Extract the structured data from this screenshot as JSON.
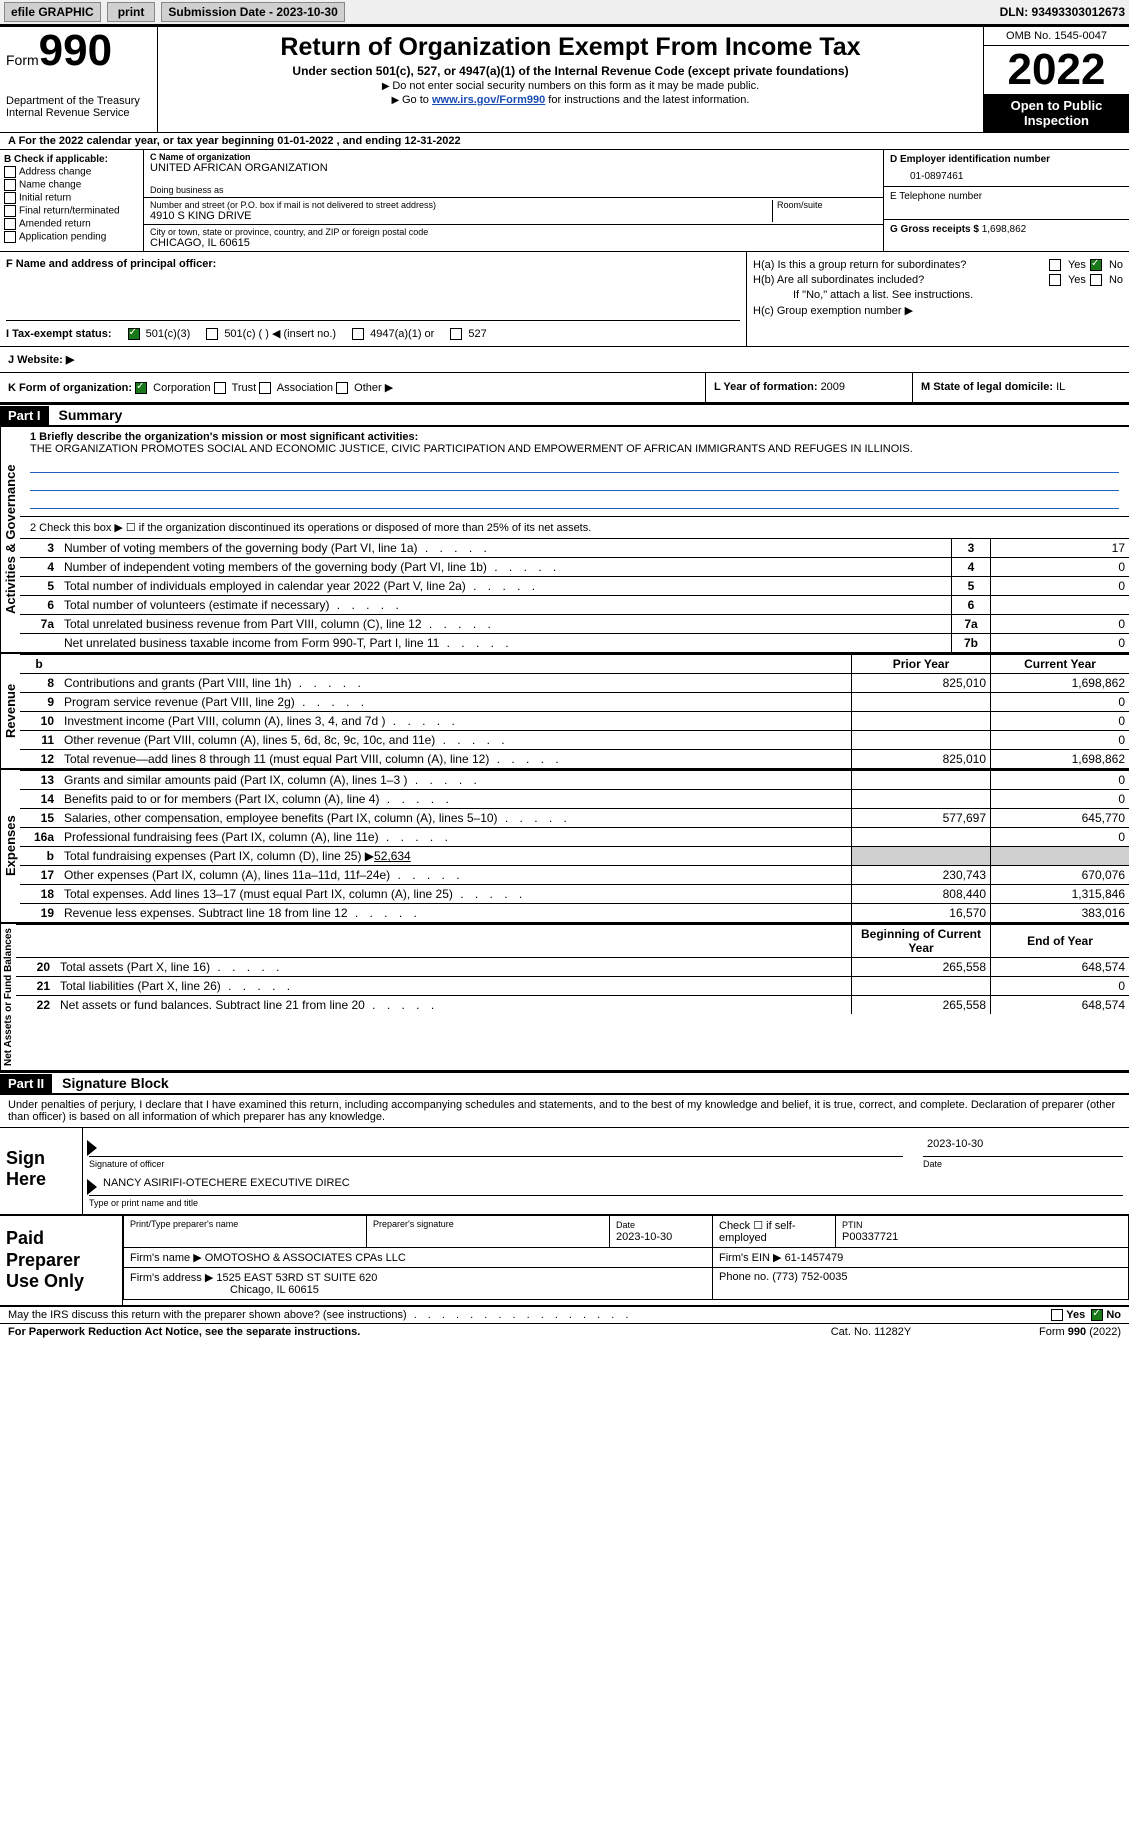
{
  "colors": {
    "link_color": "#1a4db3",
    "check_green": "#1a7a1a",
    "black": "#000000",
    "grey_cell": "#d0d0d0"
  },
  "topbar": {
    "efile": "efile GRAPHIC",
    "print": "print",
    "submission_label": "Submission Date - 2023-10-30",
    "dln": "DLN: 93493303012673"
  },
  "header": {
    "form_word": "Form",
    "form_num": "990",
    "title": "Return of Organization Exempt From Income Tax",
    "subtitle": "Under section 501(c), 527, or 4947(a)(1) of the Internal Revenue Code (except private foundations)",
    "note1": "Do not enter social security numbers on this form as it may be made public.",
    "note2_pre": "Go to ",
    "note2_link": "www.irs.gov/Form990",
    "note2_post": " for instructions and the latest information.",
    "dept": "Department of the Treasury",
    "irs": "Internal Revenue Service",
    "omb": "OMB No. 1545-0047",
    "year": "2022",
    "open_pub": "Open to Public Inspection"
  },
  "rowA": {
    "text_pre": "A For the 2022 calendar year, or tax year beginning ",
    "begin": "01-01-2022",
    "mid": "  , and ending ",
    "end": "12-31-2022"
  },
  "boxB": {
    "label": "B Check if applicable:",
    "items": [
      "Address change",
      "Name change",
      "Initial return",
      "Final return/terminated",
      "Amended return",
      "Application pending"
    ]
  },
  "boxC": {
    "name_label": "C Name of organization",
    "name": "UNITED AFRICAN ORGANIZATION",
    "dba_label": "Doing business as",
    "street_label": "Number and street (or P.O. box if mail is not delivered to street address)",
    "room_label": "Room/suite",
    "street": "4910 S KING DRIVE",
    "city_label": "City or town, state or province, country, and ZIP or foreign postal code",
    "city": "CHICAGO, IL  60615"
  },
  "boxD": {
    "ein_label": "D Employer identification number",
    "ein": "01-0897461",
    "tel_label": "E Telephone number",
    "gross_label": "G Gross receipts $ ",
    "gross": "1,698,862"
  },
  "boxF": {
    "label": "F  Name and address of principal officer:"
  },
  "boxH": {
    "ha": "H(a)  Is this a group return for subordinates?",
    "hb": "H(b)  Are all subordinates included?",
    "hb_note": "If \"No,\" attach a list. See instructions.",
    "hc": "H(c)  Group exemption number ▶",
    "yes": "Yes",
    "no": "No"
  },
  "boxI": {
    "label": "I    Tax-exempt status:",
    "opt1": "501(c)(3)",
    "opt2": "501(c) (   ) ◀ (insert no.)",
    "opt3": "4947(a)(1) or",
    "opt4": "527"
  },
  "boxJ": {
    "label": "J   Website: ▶"
  },
  "boxK": {
    "label": "K Form of organization:",
    "opts": [
      "Corporation",
      "Trust",
      "Association",
      "Other ▶"
    ]
  },
  "boxL": {
    "label": "L Year of formation: ",
    "val": "2009"
  },
  "boxM": {
    "label": "M State of legal domicile: ",
    "val": "IL"
  },
  "part1": {
    "hdr": "Part I",
    "title": "Summary",
    "line1_label": "1   Briefly describe the organization's mission or most significant activities:",
    "mission": "THE ORGANIZATION PROMOTES SOCIAL AND ECONOMIC JUSTICE, CIVIC PARTICIPATION AND EMPOWERMENT OF AFRICAN IMMIGRANTS AND REFUGES IN ILLINOIS.",
    "line2": "2    Check this box ▶ ☐  if the organization discontinued its operations or disposed of more than 25% of its net assets.",
    "vtab_ag": "Activities & Governance",
    "vtab_rev": "Revenue",
    "vtab_exp": "Expenses",
    "vtab_net": "Net Assets or Fund Balances"
  },
  "lines_ag": [
    {
      "n": "3",
      "desc": "Number of voting members of the governing body (Part VI, line 1a)",
      "box": "3",
      "v": "17"
    },
    {
      "n": "4",
      "desc": "Number of independent voting members of the governing body (Part VI, line 1b)",
      "box": "4",
      "v": "0"
    },
    {
      "n": "5",
      "desc": "Total number of individuals employed in calendar year 2022 (Part V, line 2a)",
      "box": "5",
      "v": "0"
    },
    {
      "n": "6",
      "desc": "Total number of volunteers (estimate if necessary)",
      "box": "6",
      "v": ""
    },
    {
      "n": "7a",
      "desc": "Total unrelated business revenue from Part VIII, column (C), line 12",
      "box": "7a",
      "v": "0"
    },
    {
      "n": "",
      "desc": "Net unrelated business taxable income from Form 990-T, Part I, line 11",
      "box": "7b",
      "v": "0"
    }
  ],
  "col_hdrs": {
    "prior": "Prior Year",
    "current": "Current Year",
    "begin": "Beginning of Current Year",
    "end": "End of Year"
  },
  "lines_rev": [
    {
      "n": "8",
      "desc": "Contributions and grants (Part VIII, line 1h)",
      "p": "825,010",
      "c": "1,698,862"
    },
    {
      "n": "9",
      "desc": "Program service revenue (Part VIII, line 2g)",
      "p": "",
      "c": "0"
    },
    {
      "n": "10",
      "desc": "Investment income (Part VIII, column (A), lines 3, 4, and 7d )",
      "p": "",
      "c": "0"
    },
    {
      "n": "11",
      "desc": "Other revenue (Part VIII, column (A), lines 5, 6d, 8c, 9c, 10c, and 11e)",
      "p": "",
      "c": "0"
    },
    {
      "n": "12",
      "desc": "Total revenue—add lines 8 through 11 (must equal Part VIII, column (A), line 12)",
      "p": "825,010",
      "c": "1,698,862"
    }
  ],
  "lines_exp": [
    {
      "n": "13",
      "desc": "Grants and similar amounts paid (Part IX, column (A), lines 1–3 )",
      "p": "",
      "c": "0"
    },
    {
      "n": "14",
      "desc": "Benefits paid to or for members (Part IX, column (A), line 4)",
      "p": "",
      "c": "0"
    },
    {
      "n": "15",
      "desc": "Salaries, other compensation, employee benefits (Part IX, column (A), lines 5–10)",
      "p": "577,697",
      "c": "645,770"
    },
    {
      "n": "16a",
      "desc": "Professional fundraising fees (Part IX, column (A), line 11e)",
      "p": "",
      "c": "0"
    }
  ],
  "line16b": {
    "n": "b",
    "desc": "Total fundraising expenses (Part IX, column (D), line 25) ▶",
    "val": "52,634"
  },
  "lines_exp2": [
    {
      "n": "17",
      "desc": "Other expenses (Part IX, column (A), lines 11a–11d, 11f–24e)",
      "p": "230,743",
      "c": "670,076"
    },
    {
      "n": "18",
      "desc": "Total expenses. Add lines 13–17 (must equal Part IX, column (A), line 25)",
      "p": "808,440",
      "c": "1,315,846"
    },
    {
      "n": "19",
      "desc": "Revenue less expenses. Subtract line 18 from line 12",
      "p": "16,570",
      "c": "383,016"
    }
  ],
  "lines_net": [
    {
      "n": "20",
      "desc": "Total assets (Part X, line 16)",
      "p": "265,558",
      "c": "648,574"
    },
    {
      "n": "21",
      "desc": "Total liabilities (Part X, line 26)",
      "p": "",
      "c": "0"
    },
    {
      "n": "22",
      "desc": "Net assets or fund balances. Subtract line 21 from line 20",
      "p": "265,558",
      "c": "648,574"
    }
  ],
  "part2": {
    "hdr": "Part II",
    "title": "Signature Block",
    "penalties": "Under penalties of perjury, I declare that I have examined this return, including accompanying schedules and statements, and to the best of my knowledge and belief, it is true, correct, and complete. Declaration of preparer (other than officer) is based on all information of which preparer has any knowledge."
  },
  "sign": {
    "label": "Sign Here",
    "sig_officer": "Signature of officer",
    "date": "2023-10-30",
    "date_lab": "Date",
    "name": "NANCY ASIRIFI-OTECHERE  EXECUTIVE DIREC",
    "name_lab": "Type or print name and title"
  },
  "paid": {
    "label": "Paid Preparer Use Only",
    "col1": "Print/Type preparer's name",
    "col2": "Preparer's signature",
    "col3_lab": "Date",
    "col3": "2023-10-30",
    "col4": "Check ☐ if self-employed",
    "col5_lab": "PTIN",
    "col5": "P00337721",
    "firm_name_lab": "Firm's name     ▶ ",
    "firm_name": "OMOTOSHO & ASSOCIATES CPAs LLC",
    "firm_ein_lab": "Firm's EIN ▶ ",
    "firm_ein": "61-1457479",
    "firm_addr_lab": "Firm's address ▶ ",
    "firm_addr": "1525 EAST 53RD ST SUITE 620",
    "firm_city": "Chicago, IL  60615",
    "phone_lab": "Phone no. ",
    "phone": "(773) 752-0035"
  },
  "footer": {
    "discuss": "May the IRS discuss this return with the preparer shown above? (see instructions)",
    "yes": "Yes",
    "no": "No",
    "paperwork": "For Paperwork Reduction Act Notice, see the separate instructions.",
    "cat": "Cat. No. 11282Y",
    "form": "Form 990 (2022)"
  }
}
